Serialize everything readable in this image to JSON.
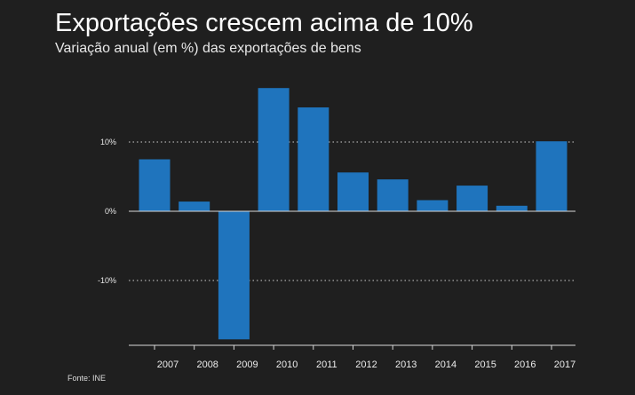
{
  "header": {
    "title": "Exportações crescem acima de 10%",
    "subtitle": "Variação anual (em %) das exportações de bens"
  },
  "footer": {
    "source": "Fonte: INE"
  },
  "chart_data": {
    "type": "bar",
    "title": "Exportações crescem acima de 10%",
    "subtitle": "Variação anual (em %) das exportações de bens",
    "xlabel": "",
    "ylabel": "",
    "categories": [
      "2007",
      "2008",
      "2009",
      "2010",
      "2011",
      "2012",
      "2013",
      "2014",
      "2015",
      "2016",
      "2017"
    ],
    "values": [
      7.5,
      1.4,
      -18.5,
      17.8,
      15.0,
      5.6,
      4.6,
      1.6,
      3.7,
      0.8,
      10.1
    ],
    "ylim": [
      -19.5,
      18.5
    ],
    "yticks": [
      {
        "value": 10,
        "label": "10%"
      },
      {
        "value": 0,
        "label": "0%"
      },
      {
        "value": -10,
        "label": "-10%"
      }
    ],
    "grid": "dotted horizontal at ticks",
    "legend": "none",
    "colors": {
      "bar": "#1f74bd",
      "background": "#1f1f1f",
      "text": "#ffffff",
      "grid": "#cfcfcf",
      "axis": "#d8d8d8"
    }
  }
}
